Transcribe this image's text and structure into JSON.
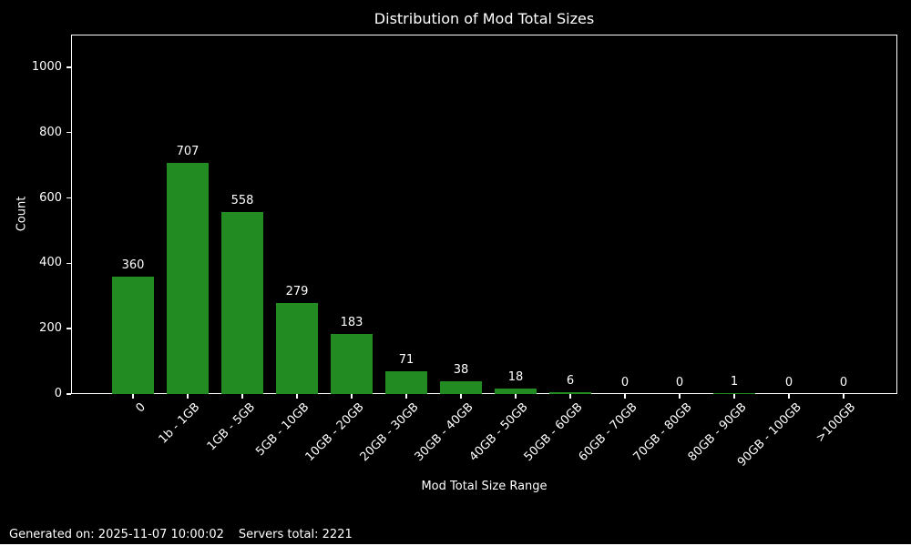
{
  "figure": {
    "background_color": "#000000",
    "text_color": "#ffffff"
  },
  "chart_data": {
    "type": "bar",
    "title": "Distribution of Mod Total Sizes",
    "xlabel": "Mod Total Size Range",
    "ylabel": "Count",
    "categories": [
      "0",
      "1b - 1GB",
      "1GB - 5GB",
      "5GB - 10GB",
      "10GB - 20GB",
      "20GB - 30GB",
      "30GB - 40GB",
      "40GB - 50GB",
      "50GB - 60GB",
      "60GB - 70GB",
      "70GB - 80GB",
      "80GB - 90GB",
      "90GB - 100GB",
      ">100GB"
    ],
    "values": [
      360,
      707,
      558,
      279,
      183,
      71,
      38,
      18,
      6,
      0,
      0,
      1,
      0,
      0
    ],
    "yticks": [
      0,
      200,
      400,
      600,
      800,
      1000
    ],
    "ylim": [
      0,
      1100
    ],
    "bar_color": "#228B22",
    "grid": false,
    "legend_position": "none",
    "xtick_rotation_deg": 45
  },
  "footer": {
    "generated": "Generated on: 2025-11-07 10:00:02",
    "servers_total": "Servers total: 2221"
  }
}
